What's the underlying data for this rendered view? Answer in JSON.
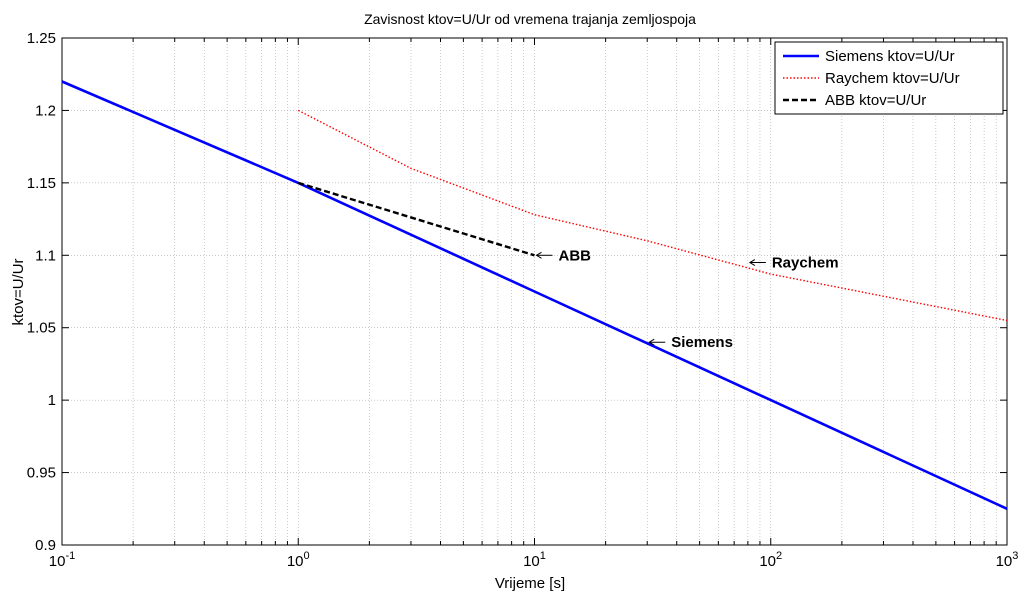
{
  "chart_data": {
    "type": "line",
    "title": "Zavisnost ktov=U/Ur od vremena trajanja zemljospoja",
    "xlabel": "Vrijeme [s]",
    "ylabel": "ktov=U/Ur",
    "xscale": "log",
    "xlim": [
      0.1,
      1000
    ],
    "ylim": [
      0.9,
      1.25
    ],
    "grid": true,
    "legend_position": "top-right",
    "x_ticks": [
      {
        "base": "10",
        "exp": "-1",
        "value": 0.1
      },
      {
        "base": "10",
        "exp": "0",
        "value": 1
      },
      {
        "base": "10",
        "exp": "1",
        "value": 10
      },
      {
        "base": "10",
        "exp": "2",
        "value": 100
      },
      {
        "base": "10",
        "exp": "3",
        "value": 1000
      }
    ],
    "y_ticks": [
      {
        "label": "0.9",
        "value": 0.9
      },
      {
        "label": "0.95",
        "value": 0.95
      },
      {
        "label": "1",
        "value": 1.0
      },
      {
        "label": "1.05",
        "value": 1.05
      },
      {
        "label": "1.1",
        "value": 1.1
      },
      {
        "label": "1.15",
        "value": 1.15
      },
      {
        "label": "1.2",
        "value": 1.2
      },
      {
        "label": "1.25",
        "value": 1.25
      }
    ],
    "series": [
      {
        "name": "Siemens ktov=U/Ur",
        "color": "#0000ff",
        "style": "solid",
        "x": [
          0.1,
          1,
          10,
          100,
          1000
        ],
        "y": [
          1.22,
          1.15,
          1.075,
          1.0,
          0.925
        ]
      },
      {
        "name": "Raychem ktov=U/Ur",
        "color": "#ff0000",
        "style": "dotted",
        "x": [
          1,
          3,
          10,
          30,
          100,
          1000
        ],
        "y": [
          1.2,
          1.16,
          1.128,
          1.11,
          1.087,
          1.055
        ]
      },
      {
        "name": "ABB ktov=U/Ur",
        "color": "#000000",
        "style": "dashed",
        "x": [
          1,
          10
        ],
        "y": [
          1.15,
          1.1
        ]
      }
    ],
    "annotations": [
      {
        "text": "ABB",
        "x": 10,
        "y": 1.1
      },
      {
        "text": "Raychem",
        "x": 80,
        "y": 1.095
      },
      {
        "text": "Siemens",
        "x": 30,
        "y": 1.04
      }
    ]
  }
}
